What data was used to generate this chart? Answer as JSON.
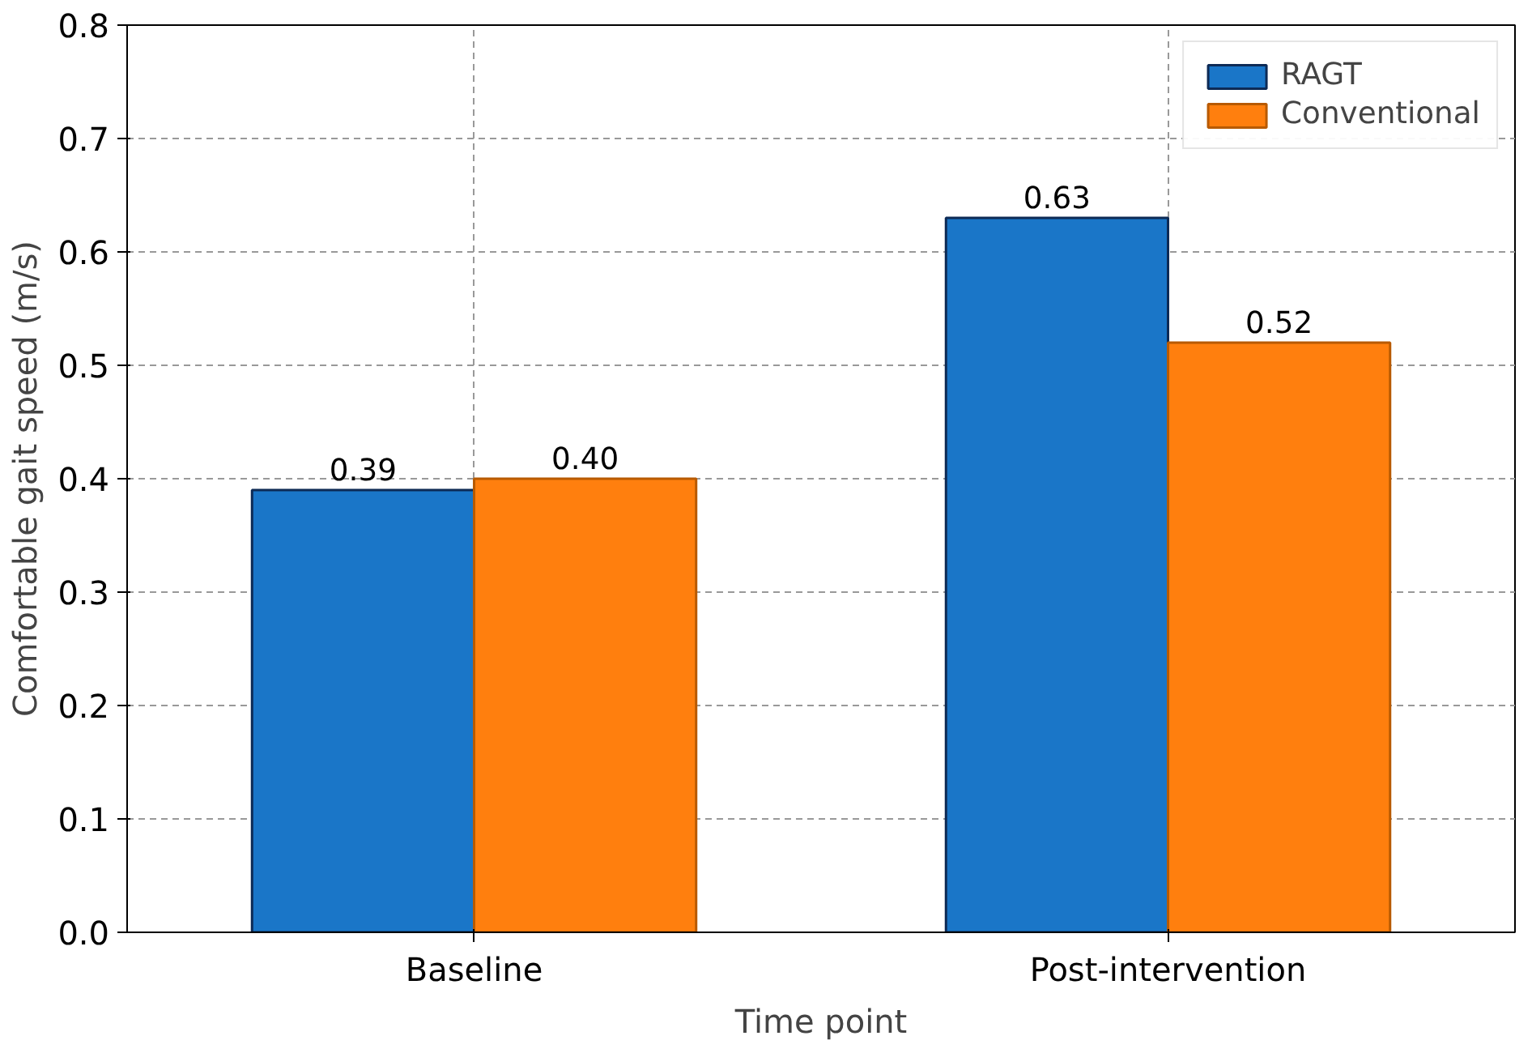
{
  "chart_data": {
    "type": "bar",
    "xlabel": "Time point",
    "ylabel": "Comfortable gait speed (m/s)",
    "categories": [
      "Baseline",
      "Post-intervention"
    ],
    "series": [
      {
        "name": "RAGT",
        "color": "#1a76c8",
        "values": [
          0.39,
          0.63
        ],
        "value_labels": [
          "0.39",
          "0.63"
        ]
      },
      {
        "name": "Conventional",
        "color": "#ff7f0e",
        "values": [
          0.4,
          0.52
        ],
        "value_labels": [
          "0.40",
          "0.52"
        ]
      }
    ],
    "ylim": [
      0,
      0.8
    ],
    "yticks": [
      {
        "value": 0,
        "label": "0.0"
      },
      0.1,
      0.2,
      0.3,
      0.4,
      0.5,
      0.6,
      0.7,
      0.8
    ],
    "grid": true,
    "legend": "top right"
  }
}
